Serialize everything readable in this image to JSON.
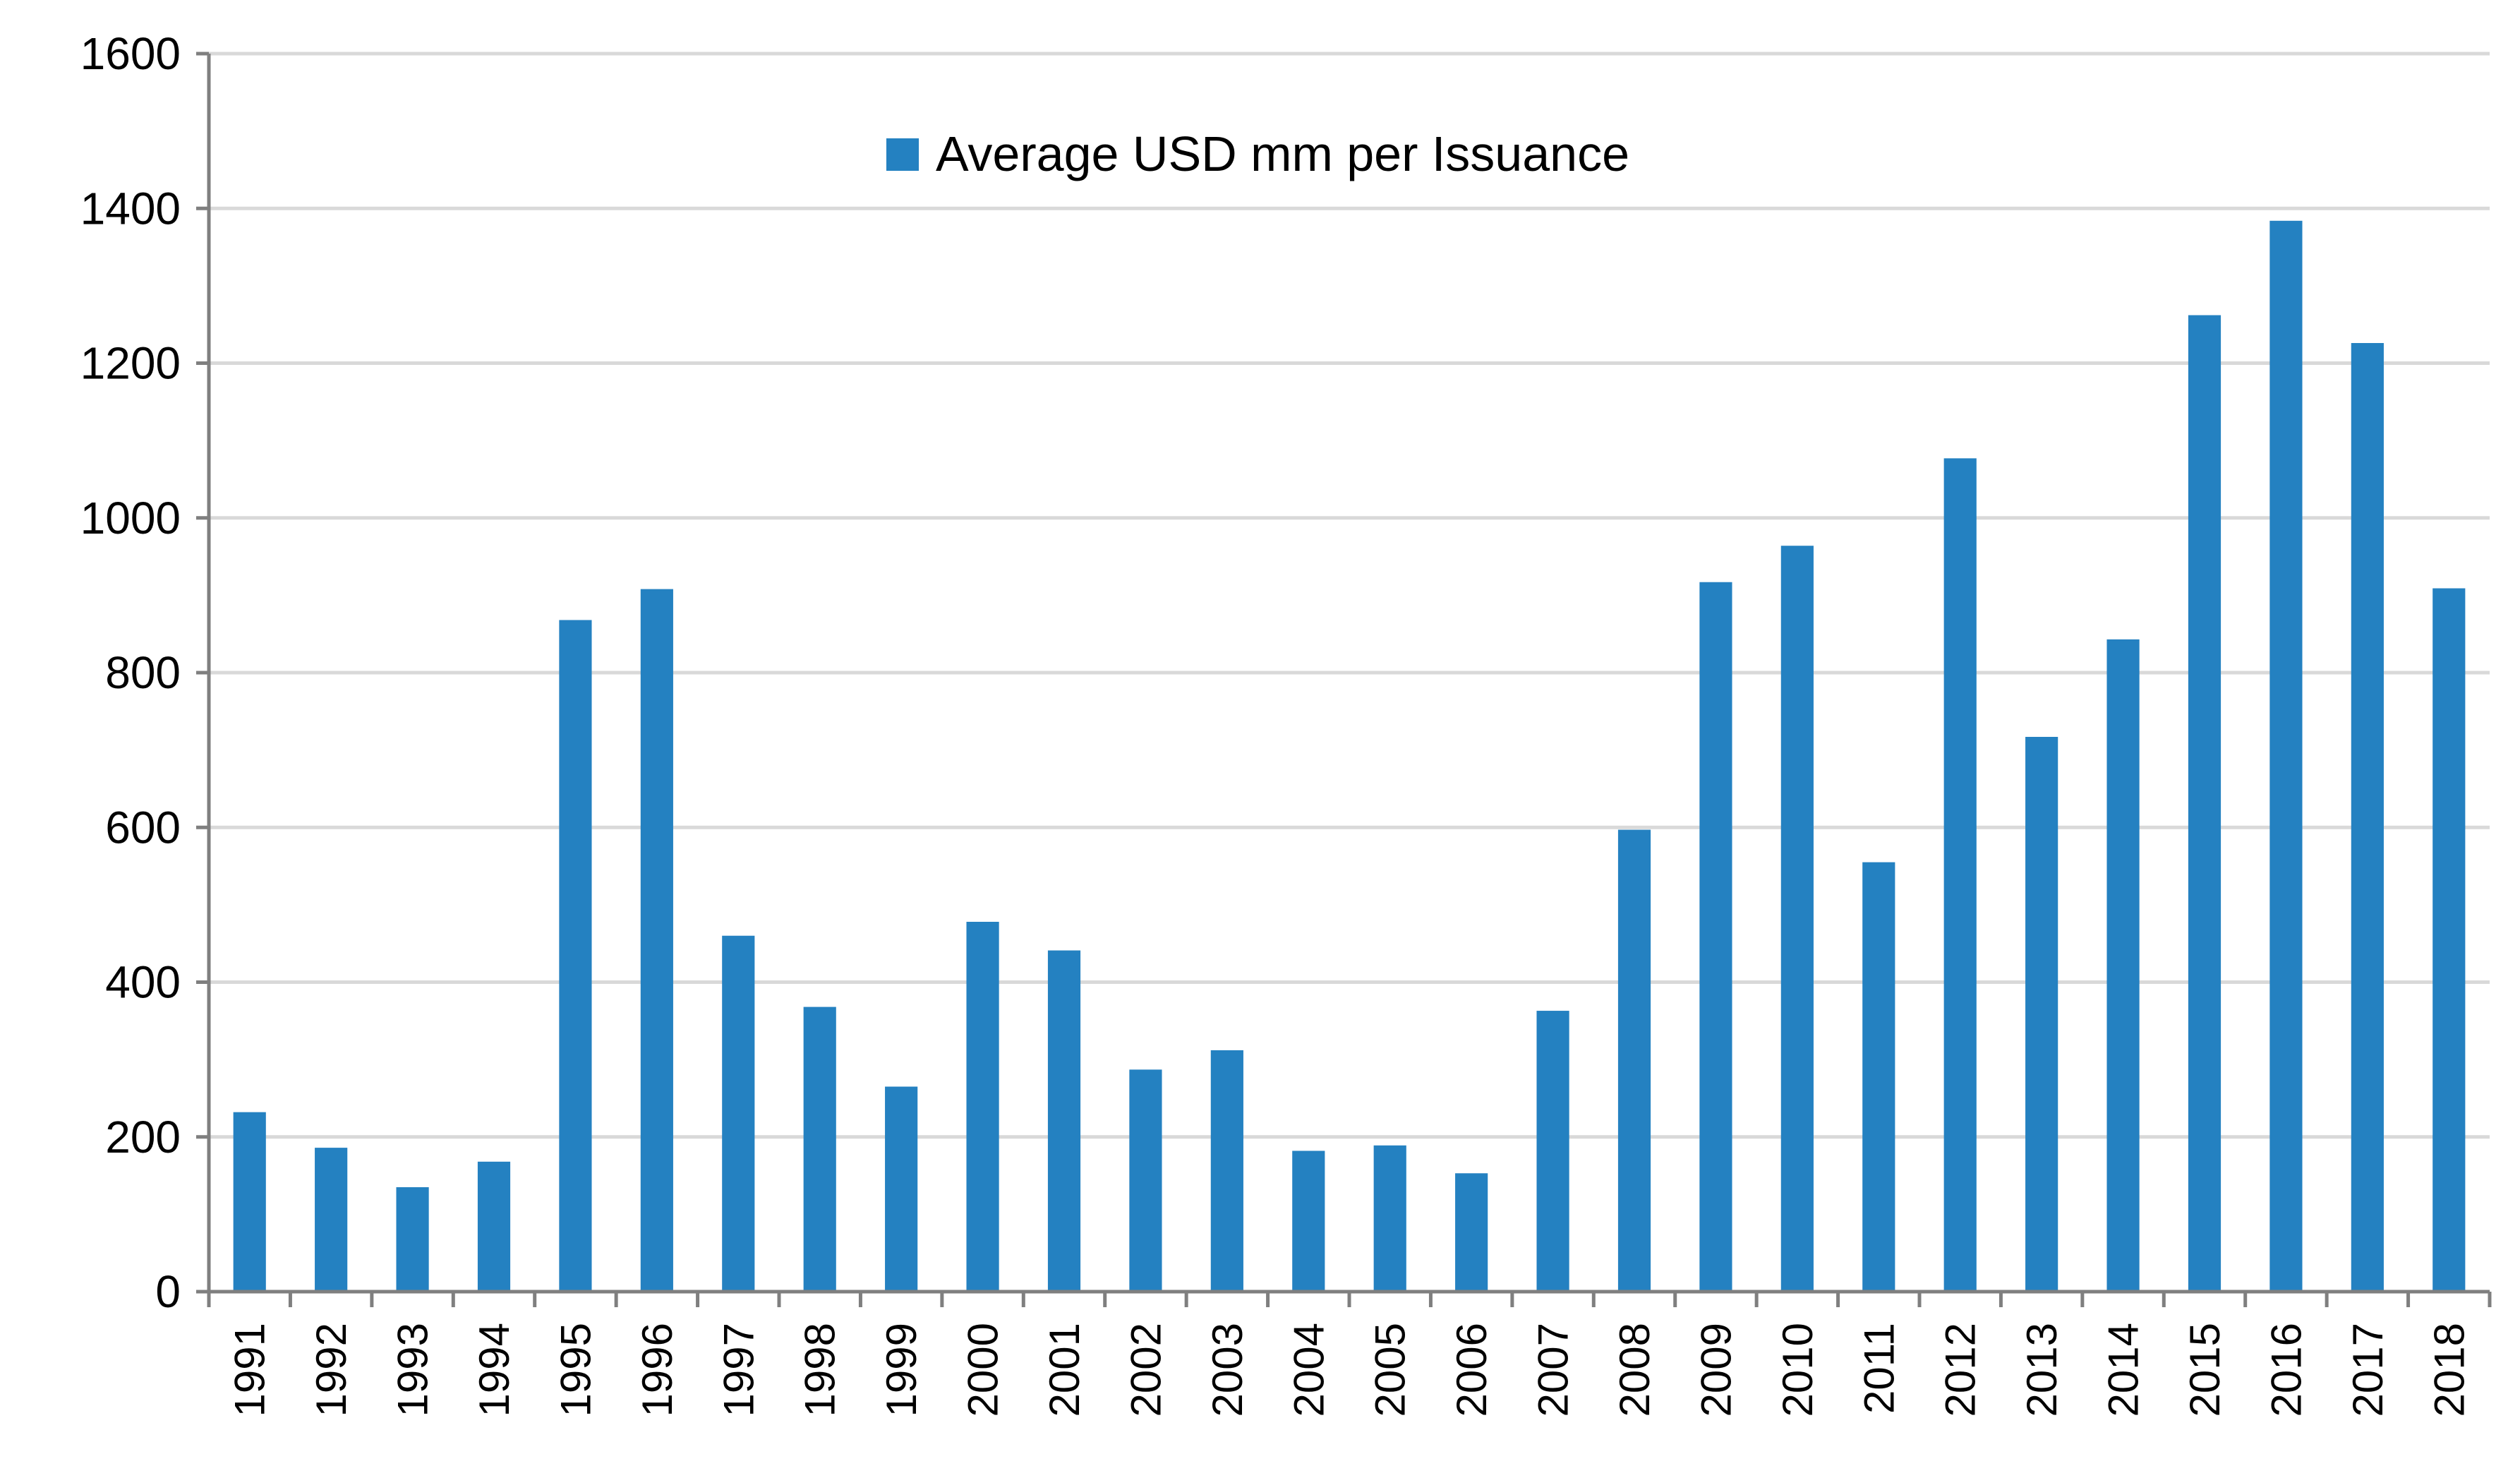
{
  "chart_data": {
    "type": "bar",
    "title": "",
    "xlabel": "",
    "ylabel": "",
    "ylim": [
      0,
      1600
    ],
    "yticks": [
      0,
      200,
      400,
      600,
      800,
      1000,
      1200,
      1400,
      1600
    ],
    "grid": true,
    "legend_position": "top-center",
    "categories": [
      "1991",
      "1992",
      "1993",
      "1994",
      "1995",
      "1996",
      "1997",
      "1998",
      "1999",
      "2000",
      "2001",
      "2002",
      "2003",
      "2004",
      "2005",
      "2006",
      "2007",
      "2008",
      "2009",
      "2010",
      "2011",
      "2012",
      "2013",
      "2014",
      "2015",
      "2016",
      "2017",
      "2018"
    ],
    "series": [
      {
        "name": "Average USD mm per Issuance",
        "color": "#2481c1",
        "values": [
          232,
          186,
          135,
          168,
          868,
          908,
          460,
          368,
          265,
          478,
          441,
          287,
          312,
          182,
          189,
          153,
          363,
          597,
          917,
          964,
          555,
          1077,
          717,
          843,
          1262,
          1384,
          1226,
          909
        ]
      }
    ]
  }
}
